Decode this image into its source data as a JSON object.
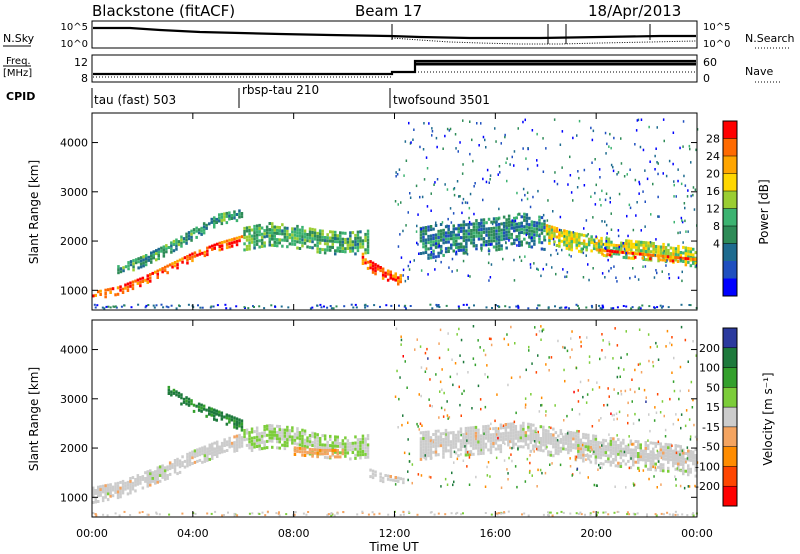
{
  "header": {
    "station": "Blackstone (fitACF)",
    "beam": "Beam 17",
    "date": "18/Apr/2013"
  },
  "noise_panel": {
    "left_label": "N.Sky",
    "right_label": "N.Search",
    "left_ticks": [
      "10^5",
      "10^0"
    ],
    "right_ticks": [
      "10^5",
      "10^0"
    ]
  },
  "freq_panel": {
    "left_label_1": "Freq.",
    "left_label_2": "[MHz]",
    "right_label": "Nave",
    "left_ticks": [
      "12",
      "8"
    ],
    "right_ticks": [
      "60",
      "0"
    ]
  },
  "cpid_panel": {
    "label": "CPID",
    "modes": [
      {
        "name": "tau (fast) 503",
        "start_hour": 0
      },
      {
        "name": "rbsp-tau 210",
        "start_hour": 6
      },
      {
        "name": "twofsound 3501",
        "start_hour": 12
      }
    ]
  },
  "power_colorbar": {
    "label": "Power [dB]",
    "ticks": [
      "28",
      "24",
      "20",
      "16",
      "12",
      "8",
      "4"
    ],
    "colors": [
      "#ff0000",
      "#ff6a00",
      "#ffa500",
      "#ffd700",
      "#9acd32",
      "#3cb371",
      "#2e8b57",
      "#1e6b8f",
      "#1f4fbf",
      "#0000ff"
    ]
  },
  "velocity_colorbar": {
    "label": "Velocity [m s⁻¹]",
    "ticks": [
      "200",
      "100",
      "50",
      "15",
      "-15",
      "-50",
      "-100",
      "-200"
    ],
    "colors": [
      "#2b3a9e",
      "#1e7a3c",
      "#33a02c",
      "#7ccd3a",
      "#cccccc",
      "#f4a460",
      "#ff8c00",
      "#ff4500",
      "#ff0000"
    ]
  },
  "chart_data": [
    {
      "type": "heatmap",
      "title": "Power",
      "ylabel": "Slant Range [km]",
      "ylim": [
        600,
        4600
      ],
      "xlim": [
        0,
        24
      ],
      "yticks": [
        1000,
        2000,
        3000,
        4000
      ],
      "xticks": [
        "00:00",
        "04:00",
        "08:00",
        "12:00",
        "16:00",
        "20:00",
        "00:00"
      ],
      "colorbar_label": "Power [dB]",
      "colorbar_range": [
        0,
        32
      ],
      "bands": [
        {
          "x": [
            0,
            1,
            2,
            3,
            4,
            5,
            6
          ],
          "y_center": [
            950,
            1050,
            1250,
            1500,
            1750,
            1950,
            2100
          ],
          "width": 200,
          "value": 28
        },
        {
          "x": [
            1,
            2,
            3,
            4,
            5,
            6
          ],
          "y_center": [
            1450,
            1650,
            1900,
            2200,
            2500,
            2600
          ],
          "width": 250,
          "value": 12
        },
        {
          "x": [
            6,
            7,
            8,
            9,
            10,
            11
          ],
          "y_center": [
            2100,
            2200,
            2150,
            2050,
            2000,
            2050
          ],
          "width": 500,
          "value": 14
        },
        {
          "x": [
            10.7,
            11,
            11.5,
            12,
            12.3
          ],
          "y_center": [
            1700,
            1550,
            1400,
            1300,
            1250
          ],
          "width": 250,
          "value": 27
        },
        {
          "x": [
            13,
            14,
            15,
            16,
            17,
            18
          ],
          "y_center": [
            2000,
            2100,
            2150,
            2200,
            2300,
            2200
          ],
          "width": 700,
          "value": 10
        },
        {
          "x": [
            18,
            19,
            20,
            21,
            22,
            23,
            24
          ],
          "y_center": [
            2200,
            2050,
            1950,
            1900,
            1850,
            1800,
            1700
          ],
          "width": 400,
          "value": 18
        },
        {
          "x": [
            20,
            21,
            22,
            23,
            24
          ],
          "y_center": [
            1850,
            1800,
            1750,
            1700,
            1650
          ],
          "width": 150,
          "value": 27
        }
      ]
    },
    {
      "type": "heatmap",
      "title": "Velocity",
      "ylabel": "Slant Range [km]",
      "xlabel": "Time UT",
      "ylim": [
        600,
        4600
      ],
      "xlim": [
        0,
        24
      ],
      "yticks": [
        1000,
        2000,
        3000,
        4000
      ],
      "xticks": [
        "00:00",
        "04:00",
        "08:00",
        "12:00",
        "16:00",
        "20:00",
        "00:00"
      ],
      "colorbar_label": "Velocity [m s⁻¹]",
      "colorbar_range": [
        -250,
        250
      ],
      "bands": [
        {
          "x": [
            0,
            1,
            2,
            3,
            4,
            5,
            6
          ],
          "y_center": [
            1100,
            1200,
            1400,
            1600,
            1850,
            2050,
            2200
          ],
          "width": 350,
          "value": 0
        },
        {
          "x": [
            3,
            4,
            5,
            6
          ],
          "y_center": [
            3200,
            2900,
            2700,
            2500
          ],
          "width": 250,
          "value": 150
        },
        {
          "x": [
            6,
            7,
            8,
            9,
            10,
            11
          ],
          "y_center": [
            2200,
            2300,
            2250,
            2100,
            2050,
            2100
          ],
          "width": 500,
          "value": 30
        },
        {
          "x": [
            8,
            9,
            10
          ],
          "y_center": [
            2000,
            1950,
            1950
          ],
          "width": 200,
          "value": -60
        },
        {
          "x": [
            11,
            11.5,
            12,
            12.4
          ],
          "y_center": [
            1550,
            1450,
            1400,
            1350
          ],
          "width": 200,
          "value": 0
        },
        {
          "x": [
            13,
            15,
            17,
            19,
            21,
            23,
            24
          ],
          "y_center": [
            2100,
            2200,
            2300,
            2100,
            1950,
            1850,
            1750
          ],
          "width": 600,
          "value": 0
        }
      ]
    }
  ]
}
